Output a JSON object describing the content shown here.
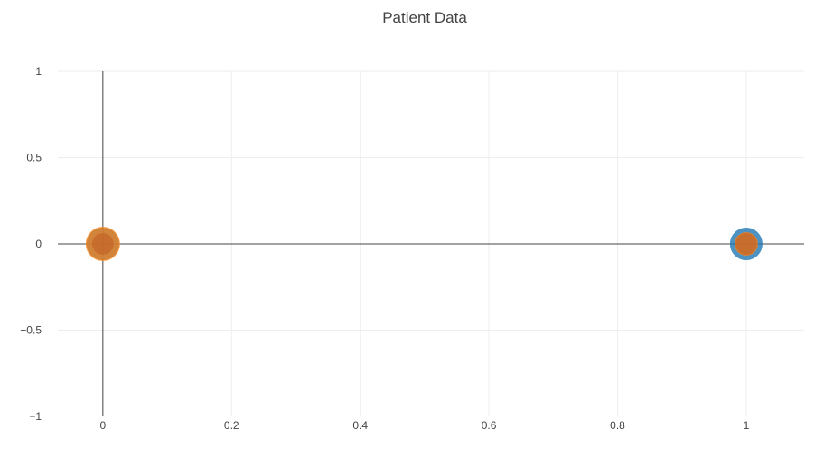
{
  "chart_data": {
    "type": "scatter",
    "title": "Patient Data",
    "xlabel": "",
    "ylabel": "",
    "xlim": [
      -0.07,
      1.09
    ],
    "ylim": [
      -1,
      1
    ],
    "x_ticks": [
      0,
      0.2,
      0.4,
      0.6,
      0.8,
      1
    ],
    "x_tick_labels": [
      "0",
      "0.2",
      "0.4",
      "0.6",
      "0.8",
      "1"
    ],
    "y_ticks": [
      -1,
      -0.5,
      0,
      0.5,
      1
    ],
    "y_tick_labels": [
      "−1",
      "−0.5",
      "0",
      "0.5",
      "1"
    ],
    "grid": true,
    "zero_lines": true,
    "legend": false,
    "series": [
      {
        "color": "#1f77b4",
        "marker": "ring",
        "points": [
          {
            "x": 0,
            "y": 0
          },
          {
            "x": 1,
            "y": 0
          }
        ]
      },
      {
        "color": "#ff7f0e",
        "marker": "filled",
        "points": [
          {
            "x": 0,
            "y": 0
          },
          {
            "x": 1,
            "y": 0
          }
        ]
      }
    ],
    "colors": {
      "grid": "#eeeeee",
      "zero_line": "#444444",
      "text": "#444444",
      "overlap": "#c1682b"
    }
  }
}
